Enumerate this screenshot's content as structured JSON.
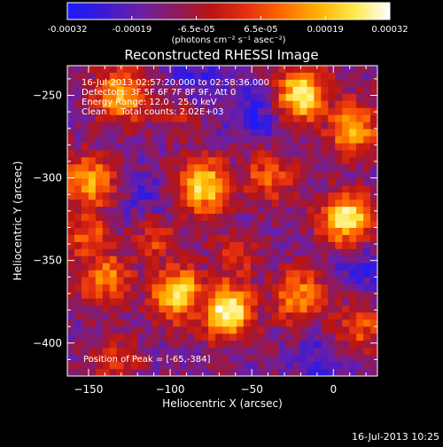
{
  "colorbar": {
    "ticks": [
      "-0.00032",
      "-0.00019",
      "-6.5e-05",
      "6.5e-05",
      "0.00019",
      "0.00032"
    ],
    "unit": "(photons cm⁻² s⁻¹ asec⁻²)",
    "stops": [
      "#1a1aff",
      "#3b1ad6",
      "#6a1fa8",
      "#8a1a60",
      "#b81414",
      "#e53010",
      "#ff6a00",
      "#ffb000",
      "#ffe94a",
      "#ffffff"
    ]
  },
  "annotations": {
    "time_range": "16-Jul-2013 02:57:20.000 to 02:58:36.000",
    "detectors": "Detectors: 3F 5F 6F 7F 8F 9F, Att 0",
    "energy": "Energy Range: 12.0 - 25.0 keV",
    "algorithm": "Clean     Total counts: 2.02E+03",
    "peak": "Position of Peak = [-65,-384]"
  },
  "footer": {
    "timestamp": "16-Jul-2013 10:25"
  },
  "chart_data": {
    "type": "heatmap",
    "title": "Reconstructed RHESSI Image",
    "xlabel": "Heliocentric X (arcsec)",
    "ylabel": "Heliocentric Y (arcsec)",
    "xlim": [
      -163,
      27
    ],
    "ylim": [
      -420,
      -232
    ],
    "x_ticks": [
      -150,
      -100,
      -50,
      0
    ],
    "y_ticks": [
      -250,
      -300,
      -350,
      -400
    ],
    "x_tick_labels": [
      "−150",
      "−100",
      "−50",
      "0"
    ],
    "y_tick_labels": [
      "−250",
      "−300",
      "−350",
      "−400"
    ],
    "colorbar_range": [
      -0.00032,
      0.00032
    ],
    "peak_position": [
      -65,
      -384
    ],
    "bright_regions": [
      {
        "x": -150,
        "y": -303,
        "level": 0.75
      },
      {
        "x": -150,
        "y": -335,
        "level": 0.6
      },
      {
        "x": -140,
        "y": -360,
        "level": 0.7
      },
      {
        "x": -130,
        "y": -250,
        "level": 0.75
      },
      {
        "x": -95,
        "y": -262,
        "level": 0.45
      },
      {
        "x": -80,
        "y": -305,
        "level": 0.85
      },
      {
        "x": -40,
        "y": -300,
        "level": 0.6
      },
      {
        "x": -20,
        "y": -250,
        "level": 0.9
      },
      {
        "x": 12,
        "y": -270,
        "level": 0.75
      },
      {
        "x": 8,
        "y": -325,
        "level": 0.9
      },
      {
        "x": -65,
        "y": -380,
        "level": 0.95
      },
      {
        "x": -95,
        "y": -370,
        "level": 0.85
      },
      {
        "x": -20,
        "y": -372,
        "level": 0.7
      },
      {
        "x": 15,
        "y": -390,
        "level": 0.6
      },
      {
        "x": -135,
        "y": -410,
        "level": 0.5
      },
      {
        "x": -110,
        "y": -338,
        "level": 0.55
      },
      {
        "x": -60,
        "y": -350,
        "level": 0.5
      }
    ],
    "dark_regions": [
      {
        "x": -45,
        "y": -260,
        "level": 0.05
      },
      {
        "x": -85,
        "y": -238,
        "level": 0.1
      },
      {
        "x": -115,
        "y": -315,
        "level": 0.15
      },
      {
        "x": 18,
        "y": -355,
        "level": 0.1
      },
      {
        "x": -5,
        "y": -410,
        "level": 0.12
      }
    ]
  }
}
